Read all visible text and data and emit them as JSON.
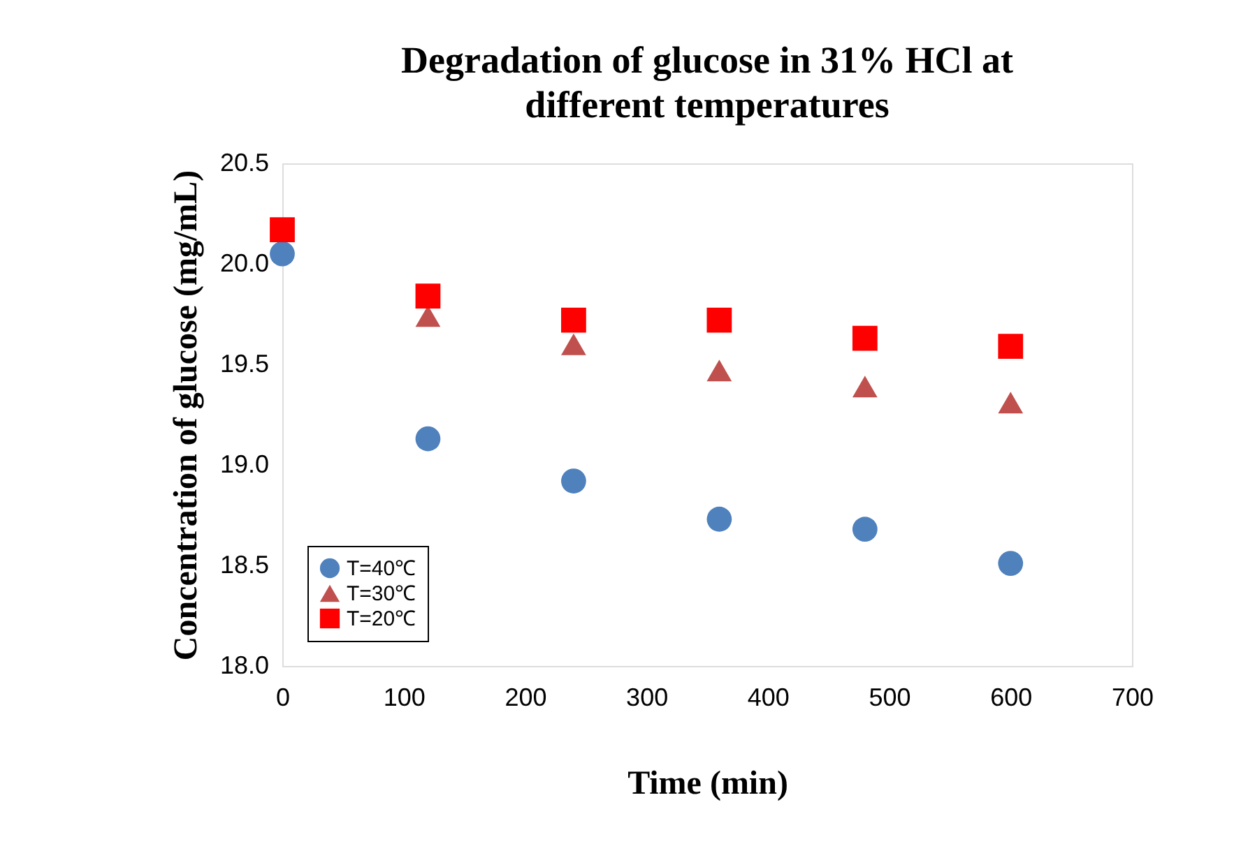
{
  "chart_data": {
    "type": "scatter",
    "title": "Degradation of glucose in 31% HCl at different temperatures",
    "xlabel": "Time (min)",
    "ylabel": "Concentration of glucose (mg/mL)",
    "x": [
      0,
      120,
      240,
      360,
      480,
      600
    ],
    "series": [
      {
        "name": "T=40℃",
        "color": "#4f81bd",
        "marker": "circle",
        "values": [
          20.05,
          19.13,
          18.92,
          18.73,
          18.68,
          18.51
        ]
      },
      {
        "name": "T=30℃",
        "color": "#c0504d",
        "marker": "triangle",
        "values": [
          null,
          19.74,
          19.6,
          19.47,
          19.39,
          19.31
        ]
      },
      {
        "name": "T=20℃",
        "color": "#ff0000",
        "marker": "square",
        "values": [
          20.17,
          19.84,
          19.72,
          19.72,
          19.63,
          19.59
        ]
      }
    ],
    "xlim": [
      0,
      700
    ],
    "xticks": [
      0,
      100,
      200,
      300,
      400,
      500,
      600,
      700
    ],
    "ylim": [
      18,
      20.5
    ],
    "yticks": [
      {
        "value": 18,
        "label": "18.0"
      },
      18.5,
      {
        "value": 19,
        "label": "19.0"
      },
      19.5,
      {
        "value": 20,
        "label": "20.0"
      },
      20.5
    ],
    "grid": false,
    "legend": "bottom left"
  }
}
